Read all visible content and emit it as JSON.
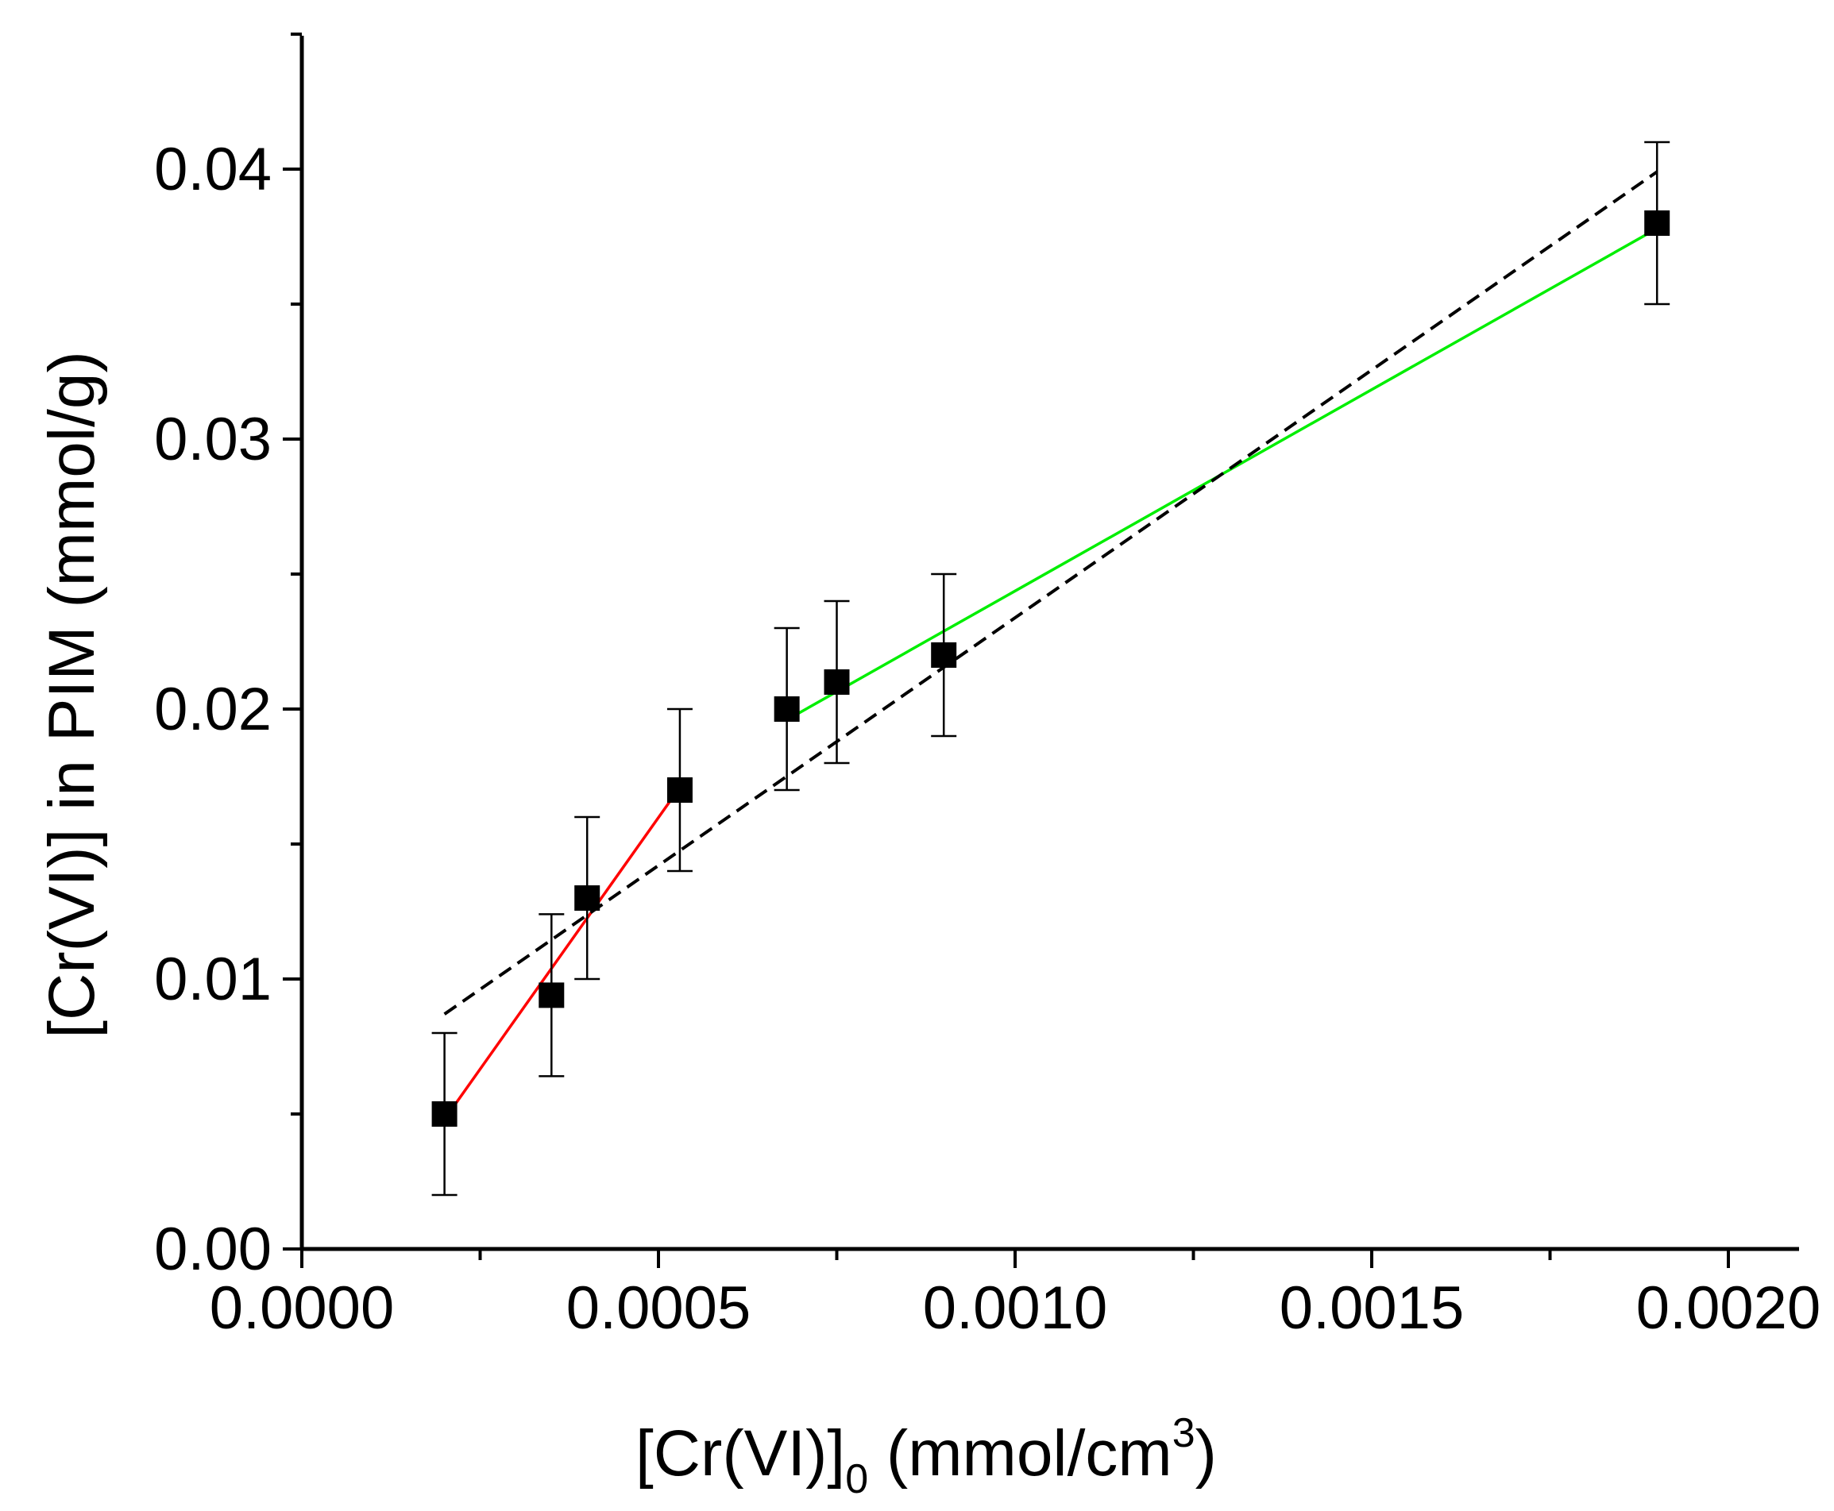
{
  "chart_data": {
    "type": "scatter",
    "title": "",
    "xlabel": {
      "main": "[Cr(VI)]",
      "subscript": "0",
      "unit_prefix": " (mmol/cm",
      "superscript": "3",
      "unit_suffix": ")"
    },
    "ylabel": "[Cr(VI)] in PIM (mmol/g)",
    "xlim": [
      0.0,
      0.0021
    ],
    "ylim": [
      0.0,
      0.045
    ],
    "x_ticks": [
      {
        "value": 0.0,
        "label": "0.0000"
      },
      {
        "value": 0.0005,
        "label": "0.0005"
      },
      {
        "value": 0.001,
        "label": "0.0010"
      },
      {
        "value": 0.0015,
        "label": "0.0015"
      },
      {
        "value": 0.002,
        "label": "0.0020"
      }
    ],
    "x_minor_ticks": [
      0.00025,
      0.00075,
      0.00125,
      0.00175
    ],
    "y_ticks": [
      {
        "value": 0.0,
        "label": "0.00"
      },
      {
        "value": 0.01,
        "label": "0.01"
      },
      {
        "value": 0.02,
        "label": "0.02"
      },
      {
        "value": 0.03,
        "label": "0.03"
      },
      {
        "value": 0.04,
        "label": "0.04"
      }
    ],
    "y_minor_ticks": [
      0.005,
      0.015,
      0.025,
      0.035,
      0.045
    ],
    "grid": false,
    "legend": "none",
    "points": [
      {
        "x": 0.0002,
        "y": 0.005,
        "err": 0.003
      },
      {
        "x": 0.00035,
        "y": 0.0094,
        "err": 0.003
      },
      {
        "x": 0.0004,
        "y": 0.013,
        "err": 0.003
      },
      {
        "x": 0.00053,
        "y": 0.017,
        "err": 0.003
      },
      {
        "x": 0.00068,
        "y": 0.02,
        "err": 0.003
      },
      {
        "x": 0.00075,
        "y": 0.021,
        "err": 0.003
      },
      {
        "x": 0.0009,
        "y": 0.022,
        "err": 0.003
      },
      {
        "x": 0.0019,
        "y": 0.038,
        "err": 0.003
      }
    ],
    "fit_lines": [
      {
        "color": "#ff0000",
        "style": "solid",
        "x": [
          0.0002,
          0.00053
        ],
        "y": [
          0.0048,
          0.0171
        ]
      },
      {
        "color": "#00ee00",
        "style": "solid",
        "x": [
          0.00068,
          0.0019
        ],
        "y": [
          0.0196,
          0.0378
        ]
      },
      {
        "color": "#000000",
        "style": "dashed",
        "x": [
          0.0002,
          0.0019
        ],
        "y": [
          0.0087,
          0.0399
        ]
      }
    ],
    "colors": {
      "marker": "#000000",
      "axis": "#000000"
    }
  }
}
